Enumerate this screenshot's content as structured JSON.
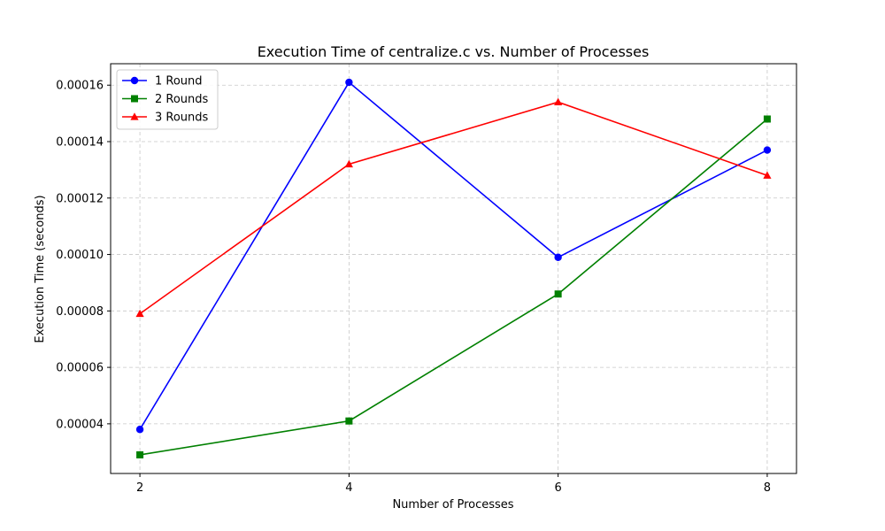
{
  "chart_data": {
    "type": "line",
    "title": "Execution Time of centralize.c vs. Number of Processes",
    "xlabel": "Number of Processes",
    "ylabel": "Execution Time (seconds)",
    "x": [
      2,
      4,
      6,
      8
    ],
    "x_ticks": [
      "2",
      "4",
      "6",
      "8"
    ],
    "xlim": [
      1.72,
      8.28
    ],
    "ylim": [
      2.24e-05,
      0.0001676
    ],
    "y_ticks": [
      4e-05,
      6e-05,
      8e-05,
      0.0001,
      0.00012,
      0.00014,
      0.00016
    ],
    "y_tick_labels": [
      "0.00004",
      "0.00006",
      "0.00008",
      "0.00010",
      "0.00012",
      "0.00014",
      "0.00016"
    ],
    "grid": true,
    "legend_position": "top-left",
    "series": [
      {
        "name": "1 Round",
        "color": "#0000ff",
        "marker": "circle",
        "values": [
          3.8e-05,
          0.000161,
          9.9e-05,
          0.000137
        ]
      },
      {
        "name": "2 Rounds",
        "color": "#008000",
        "marker": "square",
        "values": [
          2.9e-05,
          4.1e-05,
          8.6e-05,
          0.000148
        ]
      },
      {
        "name": "3 Rounds",
        "color": "#ff0000",
        "marker": "triangle",
        "values": [
          7.9e-05,
          0.000132,
          0.000154,
          0.000128
        ]
      }
    ]
  }
}
